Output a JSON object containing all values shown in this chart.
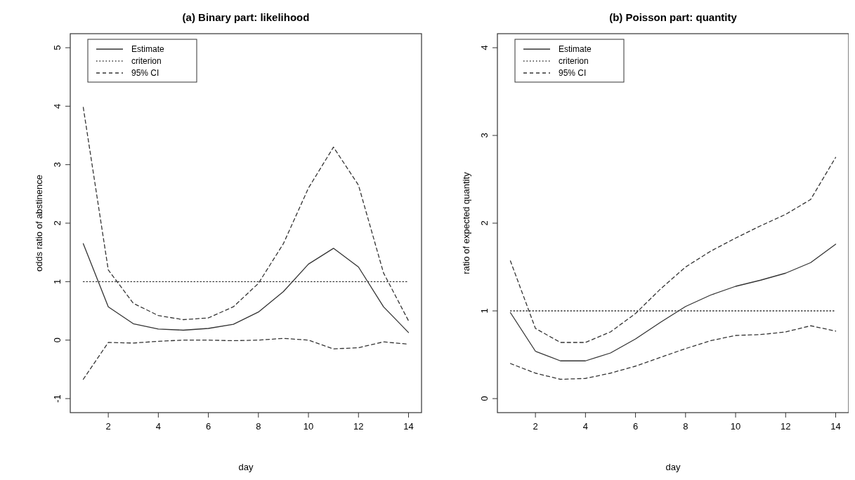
{
  "chart_data": [
    {
      "type": "line",
      "title": "(a) Binary part: likelihood",
      "xlabel": "day",
      "ylabel": "odds ratio of abstinence",
      "x": [
        1,
        2,
        3,
        4,
        5,
        6,
        7,
        8,
        9,
        10,
        11,
        12,
        13,
        14
      ],
      "xlim": [
        0.48,
        14.52
      ],
      "xticks": [
        2,
        4,
        6,
        8,
        10,
        12,
        14
      ],
      "ylim": [
        -1.24,
        5.24
      ],
      "yticks": [
        -1,
        0,
        1,
        2,
        3,
        4,
        5
      ],
      "legend": "top left",
      "grid": false,
      "series": [
        {
          "name": "Estimate",
          "color": "#333333",
          "line_style": "solid",
          "values": [
            1.65,
            0.57,
            0.28,
            0.19,
            0.17,
            0.2,
            0.27,
            0.48,
            0.83,
            1.3,
            1.57,
            1.25,
            0.57,
            0.13
          ]
        },
        {
          "name": "criterion",
          "color": "#333333",
          "line_style": "dotted",
          "values": [
            1,
            1,
            1,
            1,
            1,
            1,
            1,
            1,
            1,
            1,
            1,
            1,
            1,
            1
          ]
        },
        {
          "name": "95% CI",
          "color": "#333333",
          "line_style": "dashed",
          "values": [
            3.98,
            1.2,
            0.63,
            0.42,
            0.35,
            0.38,
            0.57,
            0.97,
            1.65,
            2.6,
            3.3,
            2.65,
            1.15,
            0.33
          ]
        },
        {
          "color": "#333333",
          "line_style": "dashed",
          "values": [
            -0.67,
            -0.04,
            -0.05,
            -0.02,
            0,
            0,
            -0.01,
            0,
            0.03,
            0,
            -0.15,
            -0.13,
            -0.03,
            -0.07
          ]
        }
      ]
    },
    {
      "type": "line",
      "title": "(b) Poisson part: quantity",
      "xlabel": "day",
      "ylabel": "ratio of expected quantity",
      "x": [
        1,
        2,
        3,
        4,
        5,
        6,
        7,
        8,
        9,
        10,
        11,
        12,
        13,
        14
      ],
      "xlim": [
        0.48,
        14.52
      ],
      "xticks": [
        2,
        4,
        6,
        8,
        10,
        12,
        14
      ],
      "ylim": [
        -0.16,
        4.16
      ],
      "yticks": [
        0,
        1,
        2,
        3,
        4
      ],
      "legend": "top left",
      "grid": false,
      "series": [
        {
          "name": "Estimate",
          "color": "#333333",
          "line_style": "solid",
          "values": [
            0.98,
            0.54,
            0.43,
            0.43,
            0.52,
            0.68,
            0.87,
            1.05,
            1.18,
            1.28,
            1.35,
            1.43,
            1.55,
            1.76
          ]
        },
        {
          "name": "criterion",
          "color": "#333333",
          "line_style": "dotted",
          "values": [
            1,
            1,
            1,
            1,
            1,
            1,
            1,
            1,
            1,
            1,
            1,
            1,
            1,
            1
          ]
        },
        {
          "name": "95% CI",
          "color": "#333333",
          "line_style": "dashed",
          "values": [
            1.57,
            0.8,
            0.64,
            0.64,
            0.76,
            0.97,
            1.25,
            1.5,
            1.68,
            1.83,
            1.97,
            2.1,
            2.27,
            2.75
          ]
        },
        {
          "color": "#333333",
          "line_style": "dashed",
          "values": [
            0.4,
            0.29,
            0.22,
            0.23,
            0.29,
            0.37,
            0.47,
            0.57,
            0.66,
            0.72,
            0.73,
            0.76,
            0.83,
            0.77
          ]
        }
      ]
    }
  ]
}
